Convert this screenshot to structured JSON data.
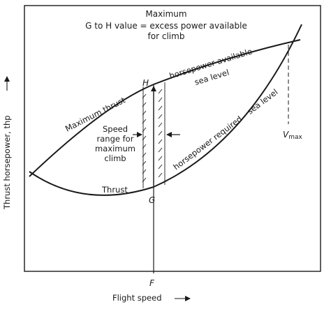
{
  "title": {
    "line1": "Maximum",
    "line2": "G to H value = excess power available",
    "line3": "for climb"
  },
  "labels": {
    "max_thrust": "Maximum thrust",
    "hp_available_1": "horsepower available–",
    "hp_available_2": "sea level",
    "hp_required": "horsepower required – sea level",
    "thrust": "Thrust",
    "speed_range_1": "Speed",
    "speed_range_2": "range for",
    "speed_range_3": "maximum",
    "speed_range_4": "climb",
    "vmax": "Vmax",
    "vmax_base": "V",
    "vmax_sub": "max"
  },
  "points": {
    "H": "H",
    "G": "G",
    "F": "F"
  },
  "axes": {
    "x_label": "Flight speed",
    "y_label": "Thrust horsepower, thp"
  },
  "colors": {
    "ink": "#1a1a1a",
    "background": "#ffffff"
  }
}
